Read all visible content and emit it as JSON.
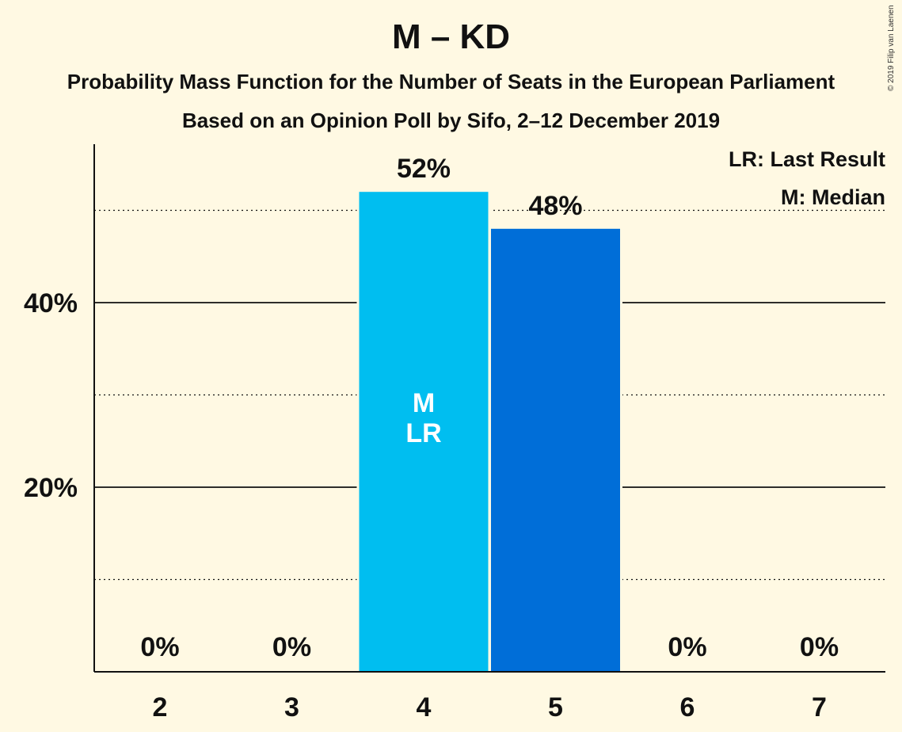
{
  "chart_data": {
    "type": "bar",
    "title": "M – KD",
    "subtitle": "Probability Mass Function for the Number of Seats in the European Parliament",
    "subtitle2": "Based on an Opinion Poll by Sifo, 2–12 December 2019",
    "copyright": "© 2019 Filip van Laenen",
    "categories": [
      "2",
      "3",
      "4",
      "5",
      "6",
      "7"
    ],
    "values": [
      0,
      0,
      52,
      48,
      0,
      0
    ],
    "value_labels": [
      "0%",
      "0%",
      "52%",
      "48%",
      "0%",
      "0%"
    ],
    "bar_colors": [
      "#00BEF0",
      "#00BEF0",
      "#00BEF0",
      "#006ED8",
      "#006ED8",
      "#006ED8"
    ],
    "yticks": [
      20,
      40
    ],
    "ytick_labels": [
      "20%",
      "40%"
    ],
    "minor_gridlines": [
      10,
      30,
      50
    ],
    "ylim": [
      0,
      57
    ],
    "bar_annotations": [
      {
        "category": "4",
        "lines": [
          "M",
          "LR"
        ]
      }
    ],
    "legend": {
      "placement": "top-right",
      "entries": [
        "LR: Last Result",
        "M: Median"
      ]
    },
    "colors": {
      "background": "#FFF9E3",
      "light_blue": "#00BEF0",
      "dark_blue": "#006ED8",
      "text": "#111111"
    }
  }
}
